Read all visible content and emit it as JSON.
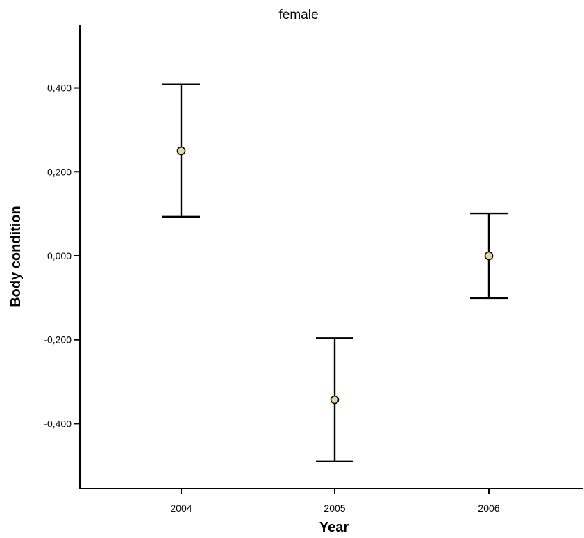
{
  "chart_data": {
    "type": "scatter",
    "title": "female",
    "xlabel": "Year",
    "ylabel": "Body condition",
    "categories": [
      "2004",
      "2005",
      "2006"
    ],
    "means": [
      0.25,
      -0.343,
      0.0
    ],
    "lower": [
      0.093,
      -0.49,
      -0.101
    ],
    "upper": [
      0.408,
      -0.196,
      0.101
    ],
    "yticks": [
      0.4,
      0.2,
      0.0,
      -0.2,
      -0.4
    ],
    "ytick_labels": [
      "0,400",
      "0,200",
      "0,000",
      "-0,200",
      "-0,400"
    ],
    "ylim": [
      -0.555,
      0.55
    ],
    "grid": false,
    "marker_color": "#e3d8a4"
  }
}
